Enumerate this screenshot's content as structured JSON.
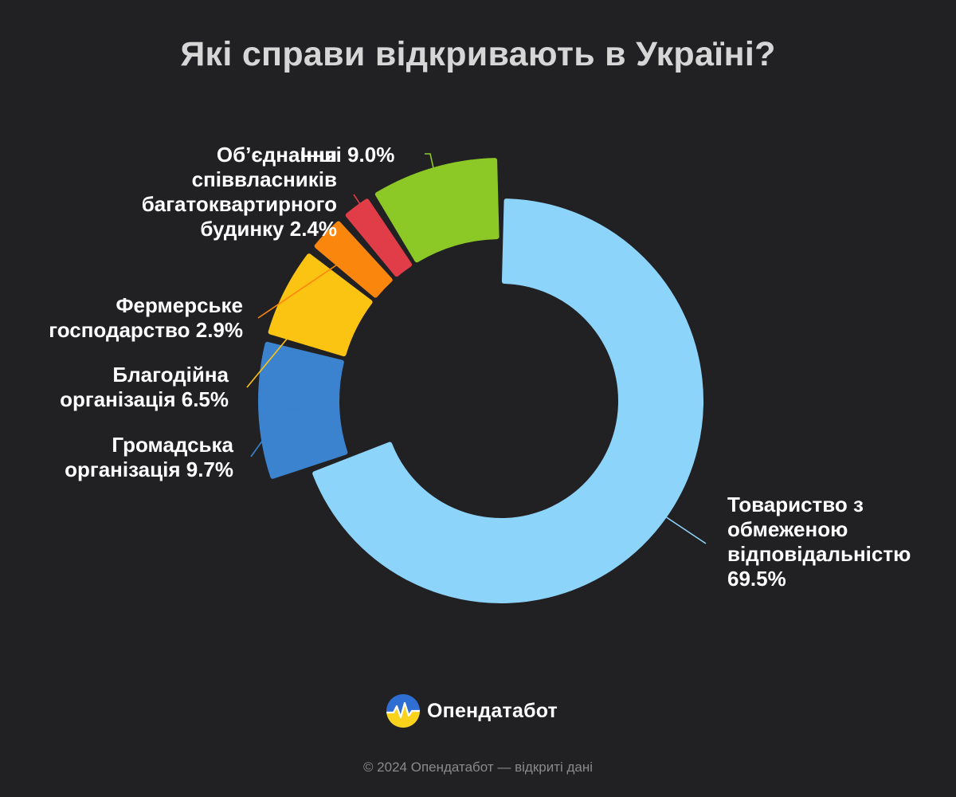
{
  "chart_data": {
    "type": "pie",
    "donut": true,
    "title": "Які справи відкривають в Україні?",
    "slices": [
      {
        "label": "Товариство з обмеженою відповідальністю 69.5%",
        "label_lines": [
          "Товариство з",
          "обмеженою",
          "відповідальністю",
          "69.5%"
        ],
        "value": 69.5,
        "color": "#8dd4fa"
      },
      {
        "label": "Громадська організація 9.7%",
        "label_lines": [
          "Громадська",
          "організація 9.7%"
        ],
        "value": 9.7,
        "color": "#3b82cf"
      },
      {
        "label": "Благодійна організація 6.5%",
        "label_lines": [
          "Благодійна",
          "організація 6.5%"
        ],
        "value": 6.5,
        "color": "#fbc312"
      },
      {
        "label": "Фермерське господарство 2.9%",
        "label_lines": [
          "Фермерське",
          "господарство 2.9%"
        ],
        "value": 2.9,
        "color": "#fb860e"
      },
      {
        "label": "Об’єднання співвласників багатоквартирного будинку 2.4%",
        "label_lines": [
          "Об’єднання",
          "співвласників",
          "багатоквартирного",
          "будинку 2.4%"
        ],
        "value": 2.4,
        "color": "#e03d48"
      },
      {
        "label": "Інші 9.0%",
        "label_lines": [
          "Інші 9.0%"
        ],
        "value": 9.0,
        "color": "#8dc926"
      }
    ],
    "legend": "none"
  },
  "brand": {
    "name": "Опендатабот"
  },
  "footer": {
    "text": "© 2024 Опендатабот — відкриті дані"
  },
  "colors": {
    "background": "#212023",
    "title": "#d6d6d6",
    "label": "#ffffff",
    "footer": "#8a8a8a"
  }
}
